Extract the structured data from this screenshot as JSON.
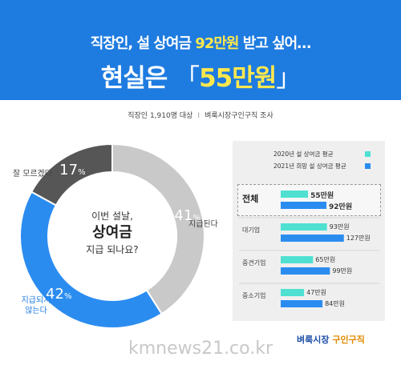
{
  "header": {
    "headline_pre": "직장인, 설 상여금 ",
    "headline_hl": "92만원",
    "headline_post": " 받고 싶어…",
    "big_pre": "현실은 ",
    "big_open": "「",
    "big_hl": "55만원",
    "big_close": "」"
  },
  "survey": {
    "left": "직장인 1,910명 대상",
    "sep": "I",
    "right": "벼룩시장구인구직 조사"
  },
  "colors": {
    "header_bg": "#1e7be0",
    "pie_gray_light": "#c9c9c9",
    "pie_blue": "#2b8cf0",
    "pie_dark": "#565656",
    "bar_2020": "#4fe0d2",
    "bar_2021": "#2b8cf0"
  },
  "chart_data": [
    {
      "type": "pie",
      "donut": true,
      "center_text": {
        "line1": "이번 설날,",
        "line2": "상여금",
        "line3": "지급 되나요?"
      },
      "slices": [
        {
          "label": "지급된다",
          "value": 41,
          "pct_text": "41",
          "pct_sign": "%"
        },
        {
          "label_line1": "지급되지",
          "label_line2": "않는다",
          "value": 42,
          "pct_text": "42",
          "pct_sign": "%"
        },
        {
          "label": "잘 모르겠다",
          "value": 17,
          "pct_text": "17",
          "pct_sign": "%"
        }
      ]
    },
    {
      "type": "bar",
      "orientation": "horizontal",
      "xlim": [
        0,
        140
      ],
      "unit": "만원",
      "legend": [
        "2020년 설 상여금 평균",
        "2021년 희망 설 상여금 평균"
      ],
      "categories": [
        "전체",
        "대기업",
        "중견기업",
        "중소기업"
      ],
      "series": [
        {
          "name": "2020년 설 상여금 평균",
          "values": [
            55,
            93,
            65,
            47
          ],
          "labels": [
            "55만원",
            "93만원",
            "65만원",
            "47만원"
          ]
        },
        {
          "name": "2021년 희망 설 상여금 평균",
          "values": [
            92,
            127,
            99,
            84
          ],
          "labels": [
            "92만원",
            "127만원",
            "99만원",
            "84만원"
          ]
        }
      ]
    }
  ],
  "watermark": "kmnews21.co.kr",
  "logo": {
    "main": "벼룩시장",
    "sub": "구인구직"
  }
}
